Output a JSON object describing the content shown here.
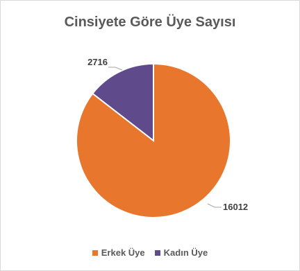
{
  "chart_data": {
    "type": "pie",
    "title": "Cinsiyete Göre Üye Sayısı",
    "categories": [
      "Kadın Üye",
      "Erkek Üye"
    ],
    "values": [
      2716,
      16012
    ],
    "colors": [
      "#5f4b8b",
      "#e8762d"
    ],
    "start_angle_deg": 0,
    "direction": "counterclockwise",
    "data_labels": [
      "2716",
      "16012"
    ],
    "legend_position": "bottom",
    "legend": [
      {
        "label": "Erkek Üye",
        "color": "#e8762d"
      },
      {
        "label": "Kadın Üye",
        "color": "#5f4b8b"
      }
    ]
  }
}
